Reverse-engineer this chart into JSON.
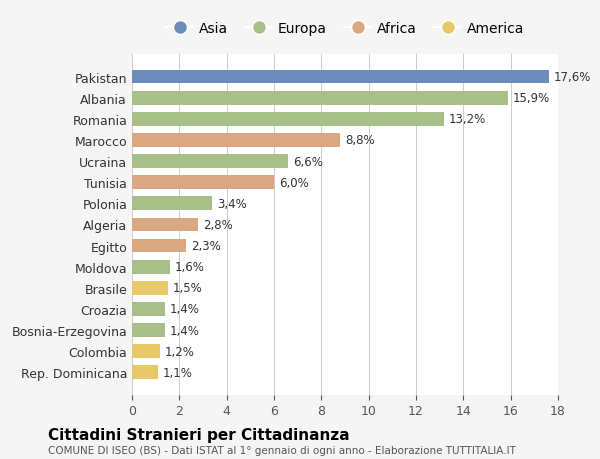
{
  "categories": [
    "Pakistan",
    "Albania",
    "Romania",
    "Marocco",
    "Ucraina",
    "Tunisia",
    "Polonia",
    "Algeria",
    "Egitto",
    "Moldova",
    "Brasile",
    "Croazia",
    "Bosnia-Erzegovina",
    "Colombia",
    "Rep. Dominicana"
  ],
  "values": [
    17.6,
    15.9,
    13.2,
    8.8,
    6.6,
    6.0,
    3.4,
    2.8,
    2.3,
    1.6,
    1.5,
    1.4,
    1.4,
    1.2,
    1.1
  ],
  "labels": [
    "17,6%",
    "15,9%",
    "13,2%",
    "8,8%",
    "6,6%",
    "6,0%",
    "3,4%",
    "2,8%",
    "2,3%",
    "1,6%",
    "1,5%",
    "1,4%",
    "1,4%",
    "1,2%",
    "1,1%"
  ],
  "continents": [
    "Asia",
    "Europa",
    "Europa",
    "Africa",
    "Europa",
    "Africa",
    "Europa",
    "Africa",
    "Africa",
    "Europa",
    "America",
    "Europa",
    "Europa",
    "America",
    "America"
  ],
  "continent_colors": {
    "Asia": "#6b8cba",
    "Europa": "#a8bf8a",
    "Africa": "#d9a882",
    "America": "#e8c96a"
  },
  "legend_order": [
    "Asia",
    "Europa",
    "Africa",
    "America"
  ],
  "title": "Cittadini Stranieri per Cittadinanza",
  "subtitle": "COMUNE DI ISEO (BS) - Dati ISTAT al 1° gennaio di ogni anno - Elaborazione TUTTITALIA.IT",
  "xlim": [
    0,
    18
  ],
  "xticks": [
    0,
    2,
    4,
    6,
    8,
    10,
    12,
    14,
    16,
    18
  ],
  "background_color": "#f5f5f5",
  "bar_background": "#ffffff",
  "grid_color": "#cccccc"
}
